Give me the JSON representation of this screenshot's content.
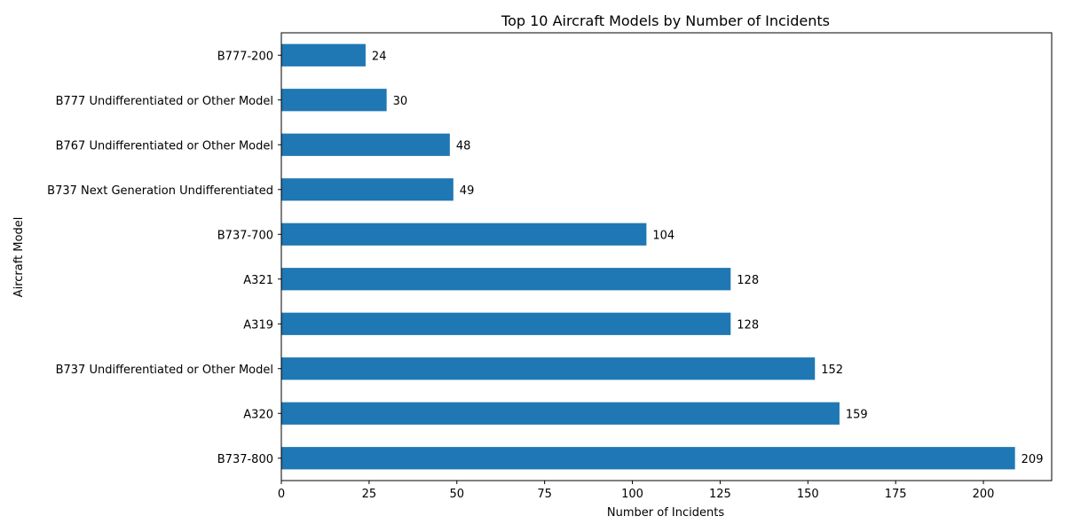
{
  "chart_data": {
    "type": "bar",
    "orientation": "horizontal",
    "title": "Top 10 Aircraft Models by Number of Incidents",
    "xlabel": "Number of Incidents",
    "ylabel": "Aircraft Model",
    "categories": [
      "B737-800",
      "A320",
      "B737 Undifferentiated or Other Model",
      "A319",
      "A321",
      "B737-700",
      "B737 Next Generation Undifferentiated",
      "B767 Undifferentiated or Other Model",
      "B777 Undifferentiated or Other Model",
      "B777-200"
    ],
    "values": [
      209,
      159,
      152,
      128,
      128,
      104,
      49,
      48,
      30,
      24
    ],
    "xlim": [
      0,
      219.45
    ],
    "xticks": [
      0,
      25,
      50,
      75,
      100,
      125,
      150,
      175,
      200
    ],
    "grid": false,
    "bar_color": "#1f77b4"
  }
}
